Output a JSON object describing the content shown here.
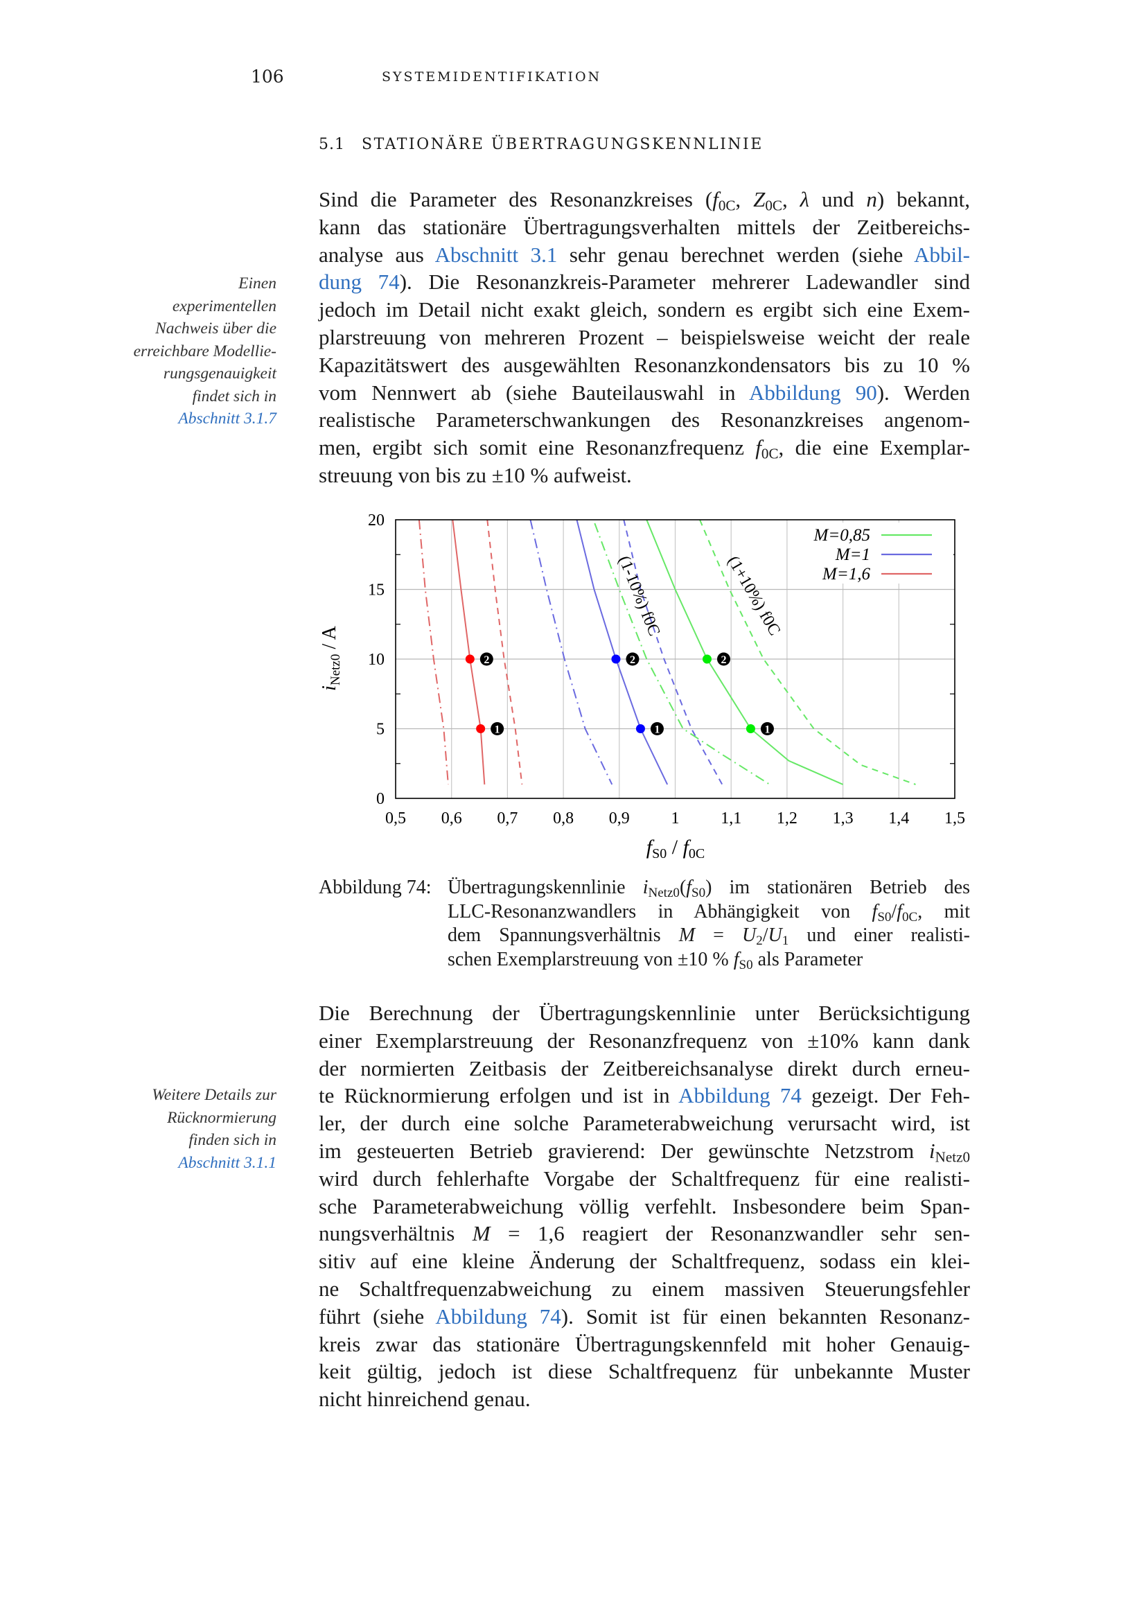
{
  "header": {
    "page_number": "106",
    "running_title": "Systemidentifikation"
  },
  "section": {
    "number": "5.1",
    "title": "Stationäre Übertragungskennlinie"
  },
  "paragraph1": [
    "Sind die Parameter des Resonanzkreises (*f*_0C_, *Z*_0C_, *λ* und *n*) bekannt,",
    "kann das stationäre Übertragungsverhalten mittels der Zeitbereichs-",
    "analyse aus [Abschnitt 3.1] sehr genau berechnet werden (siehe [Abbil-]",
    "[dung 74]). Die Resonanzkreis-Parameter mehrerer Ladewandler sind",
    "jedoch im Detail nicht exakt gleich, sondern es ergibt sich eine Exem-",
    "plarstreuung von mehreren Prozent – beispielsweise weicht der reale",
    "Kapazitätswert des ausgewählten Resonanzkondensators bis zu 10 %",
    "vom Nennwert ab (siehe Bauteilauswahl in [Abbildung 90]). Werden",
    "realistische Parameterschwankungen des Resonanzkreises angenom-",
    "men, ergibt sich somit eine Resonanzfrequenz *f*_0C_, die eine Exemplar-",
    "streuung von bis zu ±10 % aufweist."
  ],
  "margin_note1": [
    "Einen",
    "experimentellen",
    "Nachweis über die",
    "erreichbare Modellie-",
    "rungsgenauigkeit",
    "findet sich in",
    "[Abschnitt 3.1.7]"
  ],
  "caption": {
    "label": "Abbildung 74:",
    "lines": [
      "Übertragungskennlinie *i*_Netz0_(*f*_S0_) im stationären Betrieb des",
      "LLC-Resonanzwandlers in Abhängigkeit von *f*_S0_/*f*_0C_, mit",
      "dem Spannungsverhältnis *M* = *U*_2_/*U*_1_ und einer realisti-",
      "schen Exemplarstreuung von ±10 % *f*_S0_ als Parameter"
    ]
  },
  "paragraph2": [
    "Die Berechnung der Übertragungskennlinie unter Berücksichtigung",
    "einer Exemplarstreuung der Resonanzfrequenz von ±10% kann dank",
    "der normierten Zeitbasis der Zeitbereichsanalyse direkt durch erneu-",
    "te Rücknormierung erfolgen und ist in [Abbildung 74] gezeigt. Der Feh-",
    "ler, der durch eine solche Parameterabweichung verursacht wird, ist",
    "im gesteuerten Betrieb gravierend: Der gewünschte Netzstrom *i*_Netz0_",
    "wird durch fehlerhafte Vorgabe der Schaltfrequenz für eine realisti-",
    "sche Parameterabweichung völlig verfehlt. Insbesondere beim Span-",
    "nungsverhältnis *M* = 1,6 reagiert der Resonanzwandler sehr sen-",
    "sitiv auf eine kleine Änderung der Schaltfrequenz, sodass ein klei-",
    "ne Schaltfrequenzabweichung zu einem massiven Steuerungsfehler",
    "führt (siehe [Abbildung 74]). Somit ist für einen bekannten Resonanz-",
    "kreis zwar das stationäre Übertragungskennfeld mit hoher Genauig-",
    "keit gültig, jedoch ist diese Schaltfrequenz für unbekannte Muster",
    "nicht hinreichend genau."
  ],
  "margin_note2": [
    "Weitere Details zur",
    "Rücknormierung",
    "finden sich in",
    "[Abschnitt 3.1.1]"
  ],
  "link_color": "#2f6fbf",
  "chart_data": {
    "type": "line",
    "xlabel": "f_S0 / f_0C",
    "ylabel": "i_Netz0 / A",
    "xlim": [
      0.5,
      1.5
    ],
    "ylim": [
      0,
      20
    ],
    "xticks": [
      "0,5",
      "0,6",
      "0,7",
      "0,8",
      "0,9",
      "1",
      "1,1",
      "1,2",
      "1,3",
      "1,4",
      "1,5"
    ],
    "yticks": [
      "0",
      "5",
      "10",
      "15",
      "20"
    ],
    "grid": true,
    "legend_position": "top-right",
    "annotations": [
      "(1-10%) f0C",
      "(1+10%) f0C"
    ],
    "series": [
      {
        "name": "M=0,85",
        "legend": true,
        "color": "#66e866",
        "style": "solid",
        "x": [
          0.949,
          1.0,
          1.057,
          1.135,
          1.203,
          1.3
        ],
        "y": [
          20,
          15,
          10,
          5,
          2.7,
          1
        ]
      },
      {
        "name": "M=1",
        "legend": true,
        "color": "#6a6ae0",
        "style": "solid",
        "x": [
          0.824,
          0.855,
          0.894,
          0.938,
          0.986
        ],
        "y": [
          20,
          15,
          10,
          5,
          1
        ]
      },
      {
        "name": "M=1,6",
        "legend": true,
        "color": "#e06666",
        "style": "solid",
        "x": [
          0.602,
          0.617,
          0.633,
          0.652,
          0.659
        ],
        "y": [
          20,
          15,
          10,
          5,
          1
        ]
      },
      {
        "color": "#66e866",
        "style": "dashdot",
        "x": [
          0.856,
          0.9,
          0.949,
          1.014,
          1.082,
          1.169
        ],
        "y": [
          19.75,
          15,
          10,
          5,
          3.2,
          1
        ]
      },
      {
        "color": "#66e866",
        "style": "dashed",
        "x": [
          1.044,
          1.097,
          1.158,
          1.248,
          1.332,
          1.43
        ],
        "y": [
          20,
          15,
          10,
          5,
          2.4,
          1
        ]
      },
      {
        "color": "#6a6ae0",
        "style": "dashdot",
        "x": [
          0.741,
          0.77,
          0.802,
          0.839,
          0.887
        ],
        "y": [
          20,
          15,
          10,
          5,
          1
        ]
      },
      {
        "color": "#6a6ae0",
        "style": "dashed",
        "x": [
          0.908,
          0.938,
          0.98,
          1.029,
          1.084
        ],
        "y": [
          20,
          15,
          10,
          5,
          1
        ]
      },
      {
        "color": "#e06666",
        "style": "dashdot",
        "x": [
          0.542,
          0.553,
          0.568,
          0.586,
          0.594
        ],
        "y": [
          20,
          15,
          10,
          5,
          1
        ]
      },
      {
        "color": "#e06666",
        "style": "dashed",
        "x": [
          0.664,
          0.678,
          0.694,
          0.714,
          0.726
        ],
        "y": [
          20,
          15,
          10,
          5,
          1
        ]
      }
    ],
    "markers": [
      {
        "x": 0.633,
        "y": 10,
        "label": "2",
        "color": "#ff0000"
      },
      {
        "x": 0.652,
        "y": 5,
        "label": "1",
        "color": "#ff0000"
      },
      {
        "x": 0.894,
        "y": 10,
        "label": "2",
        "color": "#0000ff"
      },
      {
        "x": 0.938,
        "y": 5,
        "label": "1",
        "color": "#0000ff"
      },
      {
        "x": 1.057,
        "y": 10,
        "label": "2",
        "color": "#00ee00"
      },
      {
        "x": 1.135,
        "y": 5,
        "label": "1",
        "color": "#00ee00"
      }
    ]
  }
}
